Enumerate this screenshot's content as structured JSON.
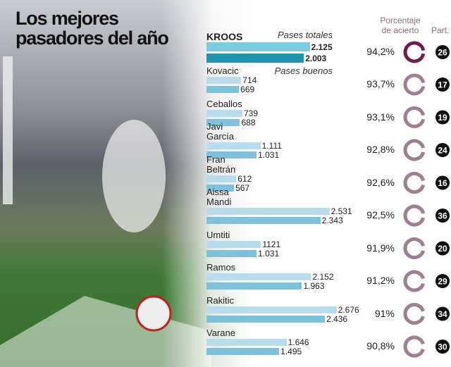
{
  "chart_data": {
    "type": "bar",
    "title": "Los mejores pasadores del año",
    "categories": [
      "KROOS",
      "Kovacic",
      "Ceballos",
      "Javi García",
      "Fran Beltrán",
      "Aissa Mandi",
      "Umtiti",
      "Ramos",
      "Rakitic",
      "Varane"
    ],
    "series": [
      {
        "name": "Pases totales",
        "color": "#b8dceb",
        "colors": [
          "#7ccbe0",
          "#b8dceb",
          "#b8dceb",
          "#b8dceb",
          "#b8dceb",
          "#b8dceb",
          "#b8dceb",
          "#b8dceb",
          "#b8dceb",
          "#b8dceb"
        ],
        "values": [
          2125,
          714,
          739,
          1111,
          612,
          2531,
          1121,
          2152,
          2676,
          1646
        ],
        "value_labels": [
          "2.125",
          "714",
          "739",
          "1.111",
          "612",
          "2.531",
          "1121",
          "2.152",
          "2.676",
          "1.646"
        ]
      },
      {
        "name": "Pases buenos",
        "color": "#7ec2da",
        "colors": [
          "#1f93b0",
          "#7ec2da",
          "#7ec2da",
          "#7ec2da",
          "#7ec2da",
          "#7ec2da",
          "#7ec2da",
          "#7ec2da",
          "#7ec2da",
          "#7ec2da"
        ],
        "values": [
          2003,
          669,
          688,
          1031,
          567,
          2343,
          1031,
          1963,
          2436,
          1495
        ],
        "value_labels": [
          "2.003",
          "669",
          "688",
          "1.031",
          "567",
          "2.343",
          "1.031",
          "1.963",
          "2.436",
          "1.495"
        ]
      }
    ],
    "accuracy": {
      "name": "Porcentaje de acierto",
      "color": "#9c7f92",
      "colors": [
        "#6e1f4e",
        "#9c7f92",
        "#9c7f92",
        "#9c7f92",
        "#9c7f92",
        "#9c7f92",
        "#9c7f92",
        "#9c7f92",
        "#9c7f92",
        "#9c7f92"
      ],
      "values": [
        94.2,
        93.7,
        93.1,
        92.8,
        92.6,
        92.5,
        91.9,
        91.2,
        91,
        90.8
      ],
      "value_labels": [
        "94,2%",
        "93,7%",
        "93,1%",
        "92,8%",
        "92,6%",
        "92,5%",
        "91,9%",
        "91,2%",
        "91%",
        "90,8%"
      ]
    },
    "matches": {
      "name": "Part.",
      "values": [
        26,
        17,
        19,
        24,
        16,
        36,
        20,
        29,
        34,
        30
      ]
    }
  }
}
